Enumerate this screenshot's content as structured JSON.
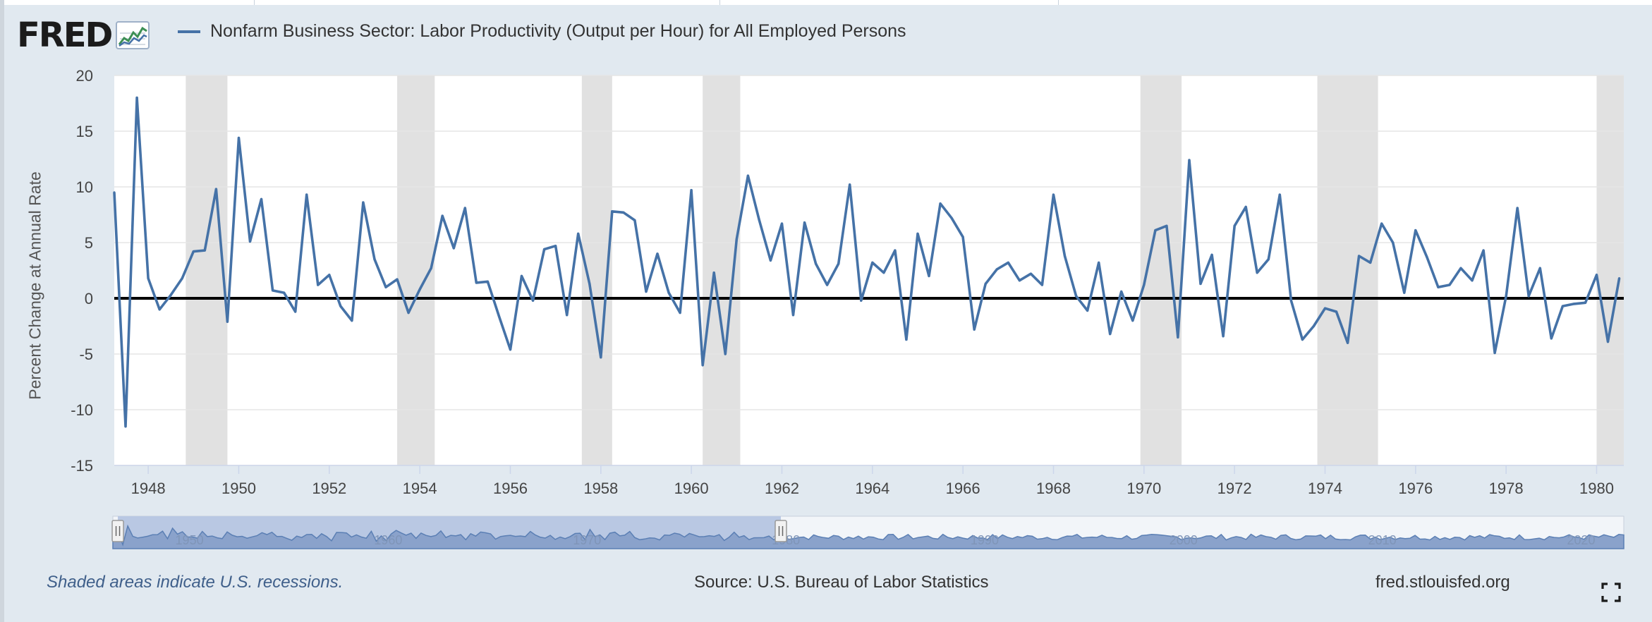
{
  "header": {
    "logo_text": "FRED",
    "series_title": "Nonfarm Business Sector: Labor Productivity (Output per Hour) for All Employed Persons"
  },
  "footer": {
    "recession_note": "Shaded areas indicate U.S. recessions.",
    "source": "Source: U.S. Bureau of Labor Statistics",
    "site": "fred.stlouisfed.org"
  },
  "icons": [
    "fred-sparkline-icon",
    "fullscreen-icon",
    "navigator-handle-icon"
  ],
  "colors": {
    "background": "#e1e9f0",
    "line": "#4572a7",
    "recession": "#e1e1e1",
    "zero_line": "#000000",
    "navigator_selected": "#b9c8e3",
    "navigator_area": "#8aa2cb"
  },
  "chart_data": {
    "type": "line",
    "title": "Nonfarm Business Sector: Labor Productivity (Output per Hour) for All Employed Persons",
    "xlabel": "",
    "ylabel": "Percent Change at Annual Rate",
    "xlim": [
      1947.25,
      1980.6
    ],
    "ylim": [
      -15,
      20
    ],
    "y_ticks": [
      20,
      15,
      10,
      5,
      0,
      -5,
      -10,
      -15
    ],
    "x_ticks": [
      1948,
      1950,
      1952,
      1954,
      1956,
      1958,
      1960,
      1962,
      1964,
      1966,
      1968,
      1970,
      1972,
      1974,
      1976,
      1978,
      1980
    ],
    "grid": true,
    "legend": "top-left",
    "zero_line": true,
    "recessions": [
      [
        1948.83,
        1949.75
      ],
      [
        1953.5,
        1954.33
      ],
      [
        1957.58,
        1958.25
      ],
      [
        1960.25,
        1961.08
      ],
      [
        1969.92,
        1970.83
      ],
      [
        1973.83,
        1975.17
      ],
      [
        1980.0,
        1980.6
      ]
    ],
    "series": [
      {
        "name": "Nonfarm Business Sector: Labor Productivity (Output per Hour) for All Employed Persons",
        "x": [
          1947.25,
          1947.5,
          1947.75,
          1948.0,
          1948.25,
          1948.5,
          1948.75,
          1949.0,
          1949.25,
          1949.5,
          1949.75,
          1950.0,
          1950.25,
          1950.5,
          1950.75,
          1951.0,
          1951.25,
          1951.5,
          1951.75,
          1952.0,
          1952.25,
          1952.5,
          1952.75,
          1953.0,
          1953.25,
          1953.5,
          1953.75,
          1954.0,
          1954.25,
          1954.5,
          1954.75,
          1955.0,
          1955.25,
          1955.5,
          1955.75,
          1956.0,
          1956.25,
          1956.5,
          1956.75,
          1957.0,
          1957.25,
          1957.5,
          1957.75,
          1958.0,
          1958.25,
          1958.5,
          1958.75,
          1959.0,
          1959.25,
          1959.5,
          1959.75,
          1960.0,
          1960.25,
          1960.5,
          1960.75,
          1961.0,
          1961.25,
          1961.5,
          1961.75,
          1962.0,
          1962.25,
          1962.5,
          1962.75,
          1963.0,
          1963.25,
          1963.5,
          1963.75,
          1964.0,
          1964.25,
          1964.5,
          1964.75,
          1965.0,
          1965.25,
          1965.5,
          1965.75,
          1966.0,
          1966.25,
          1966.5,
          1966.75,
          1967.0,
          1967.25,
          1967.5,
          1967.75,
          1968.0,
          1968.25,
          1968.5,
          1968.75,
          1969.0,
          1969.25,
          1969.5,
          1969.75,
          1970.0,
          1970.25,
          1970.5,
          1970.75,
          1971.0,
          1971.25,
          1971.5,
          1971.75,
          1972.0,
          1972.25,
          1972.5,
          1972.75,
          1973.0,
          1973.25,
          1973.5,
          1973.75,
          1974.0,
          1974.25,
          1974.5,
          1974.75,
          1975.0,
          1975.25,
          1975.5,
          1975.75,
          1976.0,
          1976.25,
          1976.5,
          1976.75,
          1977.0,
          1977.25,
          1977.5,
          1977.75,
          1978.0,
          1978.25,
          1978.5,
          1978.75,
          1979.0,
          1979.25,
          1979.5,
          1979.75,
          1980.0,
          1980.25,
          1980.5
        ],
        "values": [
          9.5,
          -11.5,
          18.0,
          1.8,
          -1.0,
          0.3,
          1.8,
          4.2,
          4.3,
          9.8,
          -2.1,
          14.4,
          5.1,
          8.9,
          0.7,
          0.5,
          -1.2,
          9.3,
          1.2,
          2.1,
          -0.7,
          -2.0,
          8.6,
          3.5,
          1.0,
          1.7,
          -1.3,
          0.8,
          2.7,
          7.4,
          4.5,
          8.1,
          1.4,
          1.5,
          -1.6,
          -4.6,
          2.0,
          -0.2,
          4.4,
          4.7,
          -1.5,
          5.8,
          1.3,
          -5.3,
          7.8,
          7.7,
          7.0,
          0.6,
          4.0,
          0.5,
          -1.3,
          9.7,
          -6.0,
          2.3,
          -5.0,
          5.3,
          11.0,
          7.0,
          3.4,
          6.7,
          -1.5,
          6.8,
          3.1,
          1.2,
          3.1,
          10.2,
          -0.2,
          3.2,
          2.3,
          4.3,
          -3.7,
          5.8,
          2.0,
          8.5,
          7.2,
          5.5,
          -2.8,
          1.3,
          2.6,
          3.2,
          1.6,
          2.2,
          1.2,
          9.3,
          3.8,
          0.2,
          -1.1,
          3.2,
          -3.2,
          0.6,
          -2.0,
          1.2,
          6.1,
          6.5,
          -3.5,
          12.4,
          1.3,
          3.9,
          -3.4,
          6.5,
          8.2,
          2.3,
          3.5,
          9.3,
          -0.2,
          -3.7,
          -2.5,
          -0.9,
          -1.2,
          -4.0,
          3.8,
          3.2,
          6.7,
          5.0,
          0.5,
          6.1,
          3.7,
          1.0,
          1.2,
          2.7,
          1.6,
          4.3,
          -4.9,
          0.2,
          8.1,
          0.2,
          2.7,
          -3.6,
          -0.7,
          -0.5,
          -0.4,
          2.1,
          -3.9,
          1.8
        ]
      }
    ],
    "navigator": {
      "x_range": [
        1947,
        2023
      ],
      "selected_range": [
        1947.25,
        1980.6
      ],
      "tick_labels": [
        "1950",
        "1960",
        "1970",
        "1980",
        "1990",
        "2000",
        "2010",
        "2020"
      ]
    }
  }
}
